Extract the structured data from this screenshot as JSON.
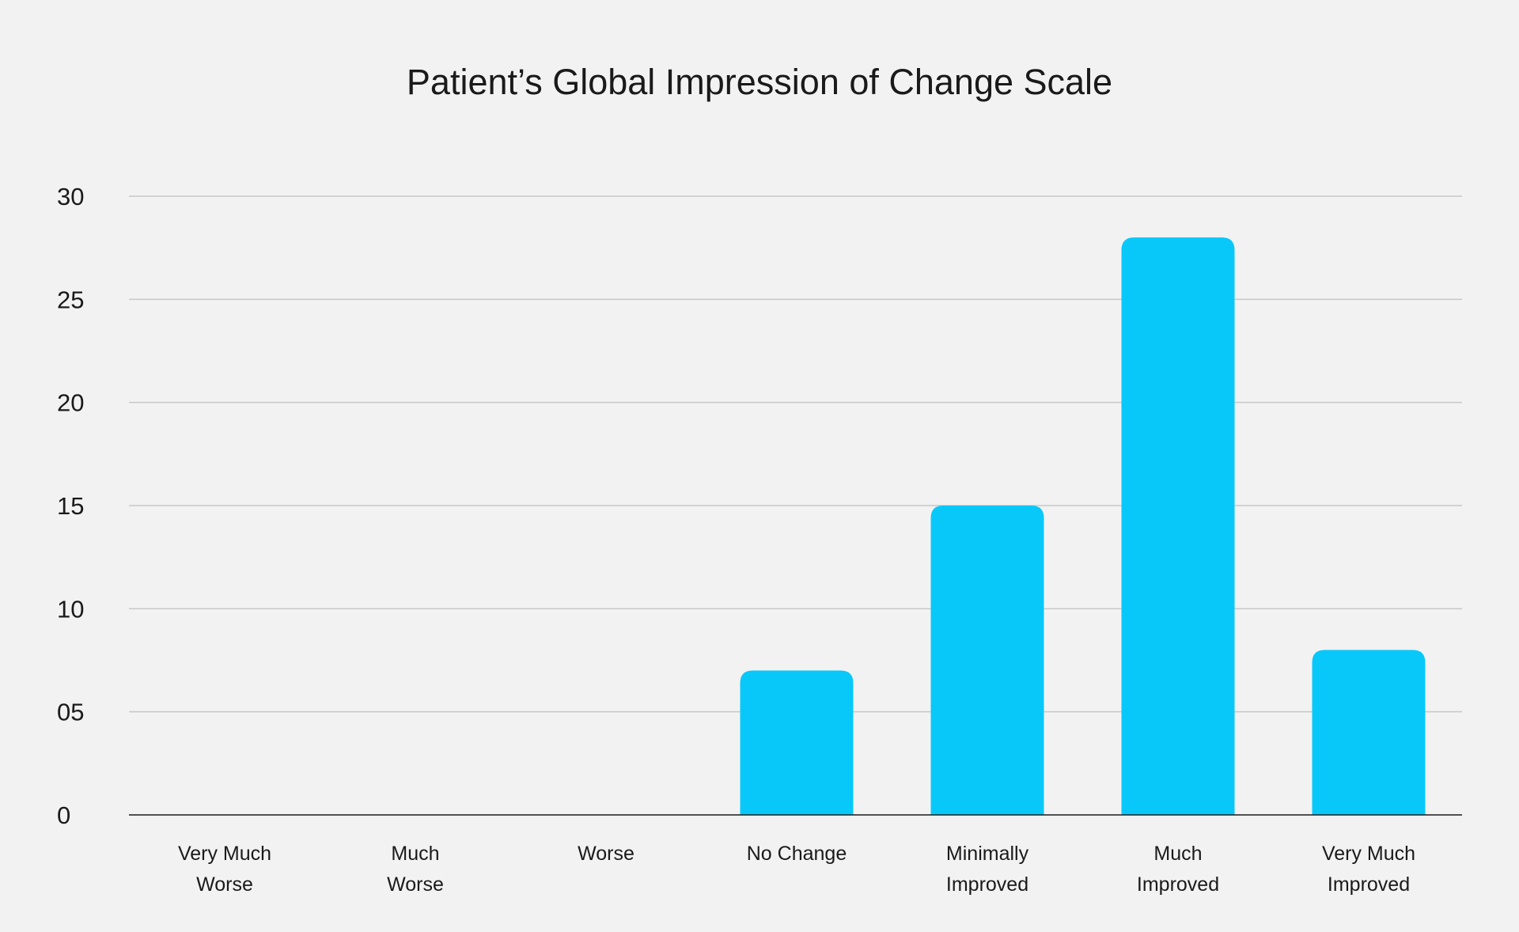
{
  "chart_data": {
    "type": "bar",
    "title": "Patient’s Global Impression of Change Scale",
    "xlabel": "",
    "ylabel": "",
    "ylim": [
      0,
      30
    ],
    "yticks": [
      {
        "value": 0,
        "label": "0"
      },
      {
        "value": 5,
        "label": "05"
      },
      {
        "value": 10,
        "label": "10"
      },
      {
        "value": 15,
        "label": "15"
      },
      {
        "value": 20,
        "label": "20"
      },
      {
        "value": 25,
        "label": "25"
      },
      {
        "value": 30,
        "label": "30"
      }
    ],
    "categories": [
      [
        "Very Much",
        "Worse"
      ],
      [
        "Much",
        "Worse"
      ],
      [
        "Worse"
      ],
      [
        "No Change"
      ],
      [
        "Minimally",
        "Improved"
      ],
      [
        "Much",
        "Improved"
      ],
      [
        "Very Much",
        "Improved"
      ]
    ],
    "values": [
      0,
      0,
      0,
      7,
      15,
      28,
      8
    ],
    "grid": true,
    "legend": "none",
    "bar_color": "#08c8fa",
    "grid_color": "#c8c8c8",
    "axis_color": "#1a1a1a"
  }
}
